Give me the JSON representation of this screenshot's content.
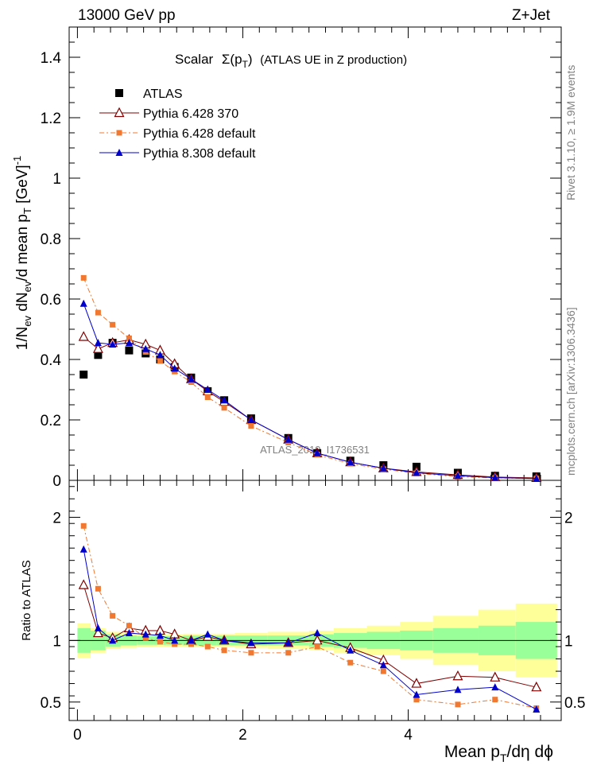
{
  "header": {
    "left": "13000 GeV pp",
    "right": "Z+Jet",
    "title_main": "Scalar",
    "title_sigma": "Σ(p",
    "title_sub": "T",
    "title_close": ")",
    "title_rest": "(ATLAS UE in Z production)"
  },
  "side_text": {
    "rivet": "Rivet 3.1.10, ≥ 1.9M events",
    "mcplots": "mcplots.cern.ch [arXiv:1306.3436]"
  },
  "watermark": "ATLAS_2019_I1736531",
  "chart_data": [
    {
      "type": "scatter",
      "panel": "main",
      "ylabel_parts": [
        "1/N",
        "ev",
        " dN",
        "ev",
        "/d mean p",
        "T",
        " [GeV]",
        "-1"
      ],
      "ylim": [
        0,
        1.5
      ],
      "yticks": [
        0,
        0.2,
        0.4,
        0.6,
        0.8,
        1,
        1.2,
        1.4
      ],
      "ytick_labels": [
        "0",
        "0.2",
        "0.4",
        "0.6",
        "0.8",
        "1",
        "1.2",
        "1.4"
      ],
      "xlim": [
        -0.1,
        5.85
      ],
      "legend_position": "top-left",
      "series": [
        {
          "name": "ATLAS",
          "marker": "square",
          "color": "#000000",
          "x": [
            0.075,
            0.25,
            0.425,
            0.625,
            0.825,
            1.0,
            1.175,
            1.375,
            1.575,
            1.775,
            2.1,
            2.55,
            2.9,
            3.3,
            3.7,
            4.1,
            4.6,
            5.05,
            5.55
          ],
          "y": [
            0.35,
            0.415,
            0.455,
            0.43,
            0.42,
            0.4,
            0.375,
            0.34,
            0.295,
            0.265,
            0.205,
            0.14,
            0.09,
            0.065,
            0.05,
            0.045,
            0.025,
            0.015,
            0.013
          ]
        },
        {
          "name": "Pythia 6.428 370",
          "marker": "open-triangle",
          "color": "#800000",
          "x": [
            0.075,
            0.25,
            0.425,
            0.625,
            0.825,
            1.0,
            1.175,
            1.375,
            1.575,
            1.775,
            2.1,
            2.55,
            2.9,
            3.3,
            3.7,
            4.1,
            4.6,
            5.05,
            5.55
          ],
          "y": [
            0.475,
            0.435,
            0.455,
            0.465,
            0.45,
            0.43,
            0.385,
            0.335,
            0.295,
            0.26,
            0.2,
            0.135,
            0.09,
            0.06,
            0.04,
            0.028,
            0.018,
            0.011,
            0.008
          ]
        },
        {
          "name": "Pythia 6.428 default",
          "marker": "small-square",
          "color": "#f07830",
          "x": [
            0.075,
            0.25,
            0.425,
            0.625,
            0.825,
            1.0,
            1.175,
            1.375,
            1.575,
            1.775,
            2.1,
            2.55,
            2.9,
            3.3,
            3.7,
            4.1,
            4.6,
            5.05,
            5.55
          ],
          "y": [
            0.67,
            0.555,
            0.515,
            0.47,
            0.425,
            0.395,
            0.36,
            0.325,
            0.275,
            0.24,
            0.18,
            0.125,
            0.085,
            0.055,
            0.037,
            0.023,
            0.012,
            0.008,
            0.006
          ]
        },
        {
          "name": "Pythia 8.308 default",
          "marker": "triangle",
          "color": "#0000cc",
          "x": [
            0.075,
            0.25,
            0.425,
            0.625,
            0.825,
            1.0,
            1.175,
            1.375,
            1.575,
            1.775,
            2.1,
            2.55,
            2.9,
            3.3,
            3.7,
            4.1,
            4.6,
            5.05,
            5.55
          ],
          "y": [
            0.585,
            0.455,
            0.45,
            0.455,
            0.435,
            0.415,
            0.37,
            0.335,
            0.3,
            0.265,
            0.2,
            0.135,
            0.09,
            0.06,
            0.04,
            0.025,
            0.015,
            0.009,
            0.006
          ]
        }
      ]
    },
    {
      "type": "scatter",
      "panel": "ratio",
      "ylabel": "Ratio to ATLAS",
      "xlabel_parts": [
        "Mean p",
        "T",
        "/dη dϕ"
      ],
      "ylim": [
        0.35,
        2.3
      ],
      "yticks": [
        0.5,
        1,
        2
      ],
      "ytick_labels": [
        "0.5",
        "1",
        "2"
      ],
      "xlim": [
        -0.1,
        5.85
      ],
      "xticks": [
        0,
        2,
        4
      ],
      "xtick_labels": [
        "0",
        "2",
        "4"
      ],
      "band_edges": [
        0,
        0.16,
        0.34,
        0.52,
        0.72,
        0.92,
        1.08,
        1.28,
        1.48,
        1.68,
        1.9,
        2.3,
        2.8,
        3.1,
        3.5,
        3.9,
        4.3,
        4.85,
        5.3,
        5.8
      ],
      "band_inner": [
        0.1,
        0.08,
        0.05,
        0.04,
        0.035,
        0.035,
        0.035,
        0.04,
        0.04,
        0.04,
        0.04,
        0.04,
        0.05,
        0.06,
        0.07,
        0.08,
        0.1,
        0.12,
        0.15
      ],
      "band_outer": [
        0.14,
        0.1,
        0.07,
        0.06,
        0.055,
        0.05,
        0.05,
        0.055,
        0.055,
        0.055,
        0.06,
        0.07,
        0.08,
        0.1,
        0.12,
        0.15,
        0.2,
        0.25,
        0.3
      ],
      "series": [
        {
          "name": "Pythia 6.428 370",
          "marker": "open-triangle",
          "color": "#800000",
          "x": [
            0.075,
            0.25,
            0.425,
            0.625,
            0.825,
            1.0,
            1.175,
            1.375,
            1.575,
            1.775,
            2.1,
            2.55,
            2.9,
            3.3,
            3.7,
            4.1,
            4.6,
            5.05,
            5.55
          ],
          "y": [
            1.45,
            1.06,
            1.02,
            1.1,
            1.08,
            1.08,
            1.05,
            1.0,
            1.03,
            1.0,
            0.97,
            0.98,
            1.0,
            0.94,
            0.84,
            0.65,
            0.71,
            0.7,
            0.62
          ]
        },
        {
          "name": "Pythia 6.428 default",
          "marker": "small-square",
          "color": "#f07830",
          "x": [
            0.075,
            0.25,
            0.425,
            0.625,
            0.825,
            1.0,
            1.175,
            1.375,
            1.575,
            1.775,
            2.1,
            2.55,
            2.9,
            3.3,
            3.7,
            4.1,
            4.6,
            5.05,
            5.55
          ],
          "y": [
            1.93,
            1.42,
            1.2,
            1.12,
            1.02,
            0.99,
            0.97,
            0.97,
            0.95,
            0.92,
            0.9,
            0.9,
            0.95,
            0.82,
            0.75,
            0.52,
            0.48,
            0.52,
            0.45
          ]
        },
        {
          "name": "Pythia 8.308 default",
          "marker": "triangle",
          "color": "#0000cc",
          "x": [
            0.075,
            0.25,
            0.425,
            0.625,
            0.825,
            1.0,
            1.175,
            1.375,
            1.575,
            1.775,
            2.1,
            2.55,
            2.9,
            3.3,
            3.7,
            4.1,
            4.6,
            5.05,
            5.55
          ],
          "y": [
            1.74,
            1.1,
            1.0,
            1.06,
            1.05,
            1.04,
            1.0,
            1.0,
            1.05,
            1.0,
            0.98,
            0.98,
            1.06,
            0.92,
            0.8,
            0.56,
            0.6,
            0.62,
            0.44
          ]
        }
      ]
    }
  ]
}
